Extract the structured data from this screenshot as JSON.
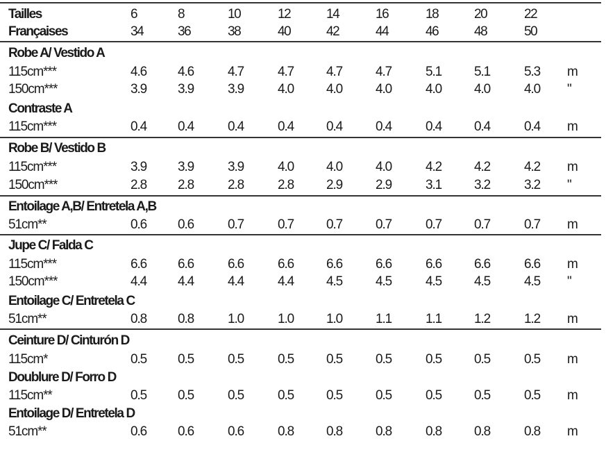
{
  "header": {
    "sizes_label": "Tailles",
    "sizes": [
      "6",
      "8",
      "10",
      "12",
      "14",
      "16",
      "18",
      "20",
      "22"
    ],
    "french_label": "Françaises",
    "french_sizes": [
      "34",
      "36",
      "38",
      "40",
      "42",
      "44",
      "46",
      "48",
      "50"
    ]
  },
  "sections": [
    {
      "title": "Robe A/ Vestido A",
      "rows": [
        {
          "label": "115cm***",
          "values": [
            "4.6",
            "4.6",
            "4.7",
            "4.7",
            "4.7",
            "4.7",
            "5.1",
            "5.1",
            "5.3"
          ],
          "unit": "m"
        },
        {
          "label": "150cm***",
          "values": [
            "3.9",
            "3.9",
            "3.9",
            "4.0",
            "4.0",
            "4.0",
            "4.0",
            "4.0",
            "4.0"
          ],
          "unit": "\""
        }
      ]
    },
    {
      "title": "Contraste A",
      "rows": [
        {
          "label": "115cm***",
          "values": [
            "0.4",
            "0.4",
            "0.4",
            "0.4",
            "0.4",
            "0.4",
            "0.4",
            "0.4",
            "0.4"
          ],
          "unit": "m"
        }
      ]
    },
    {
      "title": "Robe B/ Vestido B",
      "rows": [
        {
          "label": "115cm***",
          "values": [
            "3.9",
            "3.9",
            "3.9",
            "4.0",
            "4.0",
            "4.0",
            "4.2",
            "4.2",
            "4.2"
          ],
          "unit": "m"
        },
        {
          "label": "150cm***",
          "values": [
            "2.8",
            "2.8",
            "2.8",
            "2.8",
            "2.9",
            "2.9",
            "3.1",
            "3.2",
            "3.2"
          ],
          "unit": "\""
        }
      ]
    },
    {
      "title": "Entoilage A,B/ Entretela A,B",
      "rows": [
        {
          "label": "51cm**",
          "values": [
            "0.6",
            "0.6",
            "0.7",
            "0.7",
            "0.7",
            "0.7",
            "0.7",
            "0.7",
            "0.7"
          ],
          "unit": "m"
        }
      ]
    },
    {
      "title": "Jupe C/ Falda C",
      "rows": [
        {
          "label": "115cm***",
          "values": [
            "6.6",
            "6.6",
            "6.6",
            "6.6",
            "6.6",
            "6.6",
            "6.6",
            "6.6",
            "6.6"
          ],
          "unit": "m"
        },
        {
          "label": "150cm***",
          "values": [
            "4.4",
            "4.4",
            "4.4",
            "4.4",
            "4.5",
            "4.5",
            "4.5",
            "4.5",
            "4.5"
          ],
          "unit": "\""
        }
      ]
    },
    {
      "title": "Entoilage C/ Entretela C",
      "rows": [
        {
          "label": "51cm**",
          "values": [
            "0.8",
            "0.8",
            "1.0",
            "1.0",
            "1.0",
            "1.1",
            "1.1",
            "1.2",
            "1.2"
          ],
          "unit": "m"
        }
      ]
    },
    {
      "title": "Ceinture D/ Cinturón D",
      "rows": [
        {
          "label": "115cm*",
          "values": [
            "0.5",
            "0.5",
            "0.5",
            "0.5",
            "0.5",
            "0.5",
            "0.5",
            "0.5",
            "0.5"
          ],
          "unit": "m"
        }
      ]
    },
    {
      "title": "Doublure D/ Forro D",
      "rows": [
        {
          "label": "115cm**",
          "values": [
            "0.5",
            "0.5",
            "0.5",
            "0.5",
            "0.5",
            "0.5",
            "0.5",
            "0.5",
            "0.5"
          ],
          "unit": "m"
        }
      ]
    },
    {
      "title": "Entoilage D/ Entretela D",
      "rows": [
        {
          "label": "51cm**",
          "values": [
            "0.6",
            "0.6",
            "0.6",
            "0.8",
            "0.8",
            "0.8",
            "0.8",
            "0.8",
            "0.8"
          ],
          "unit": "m"
        }
      ]
    }
  ]
}
